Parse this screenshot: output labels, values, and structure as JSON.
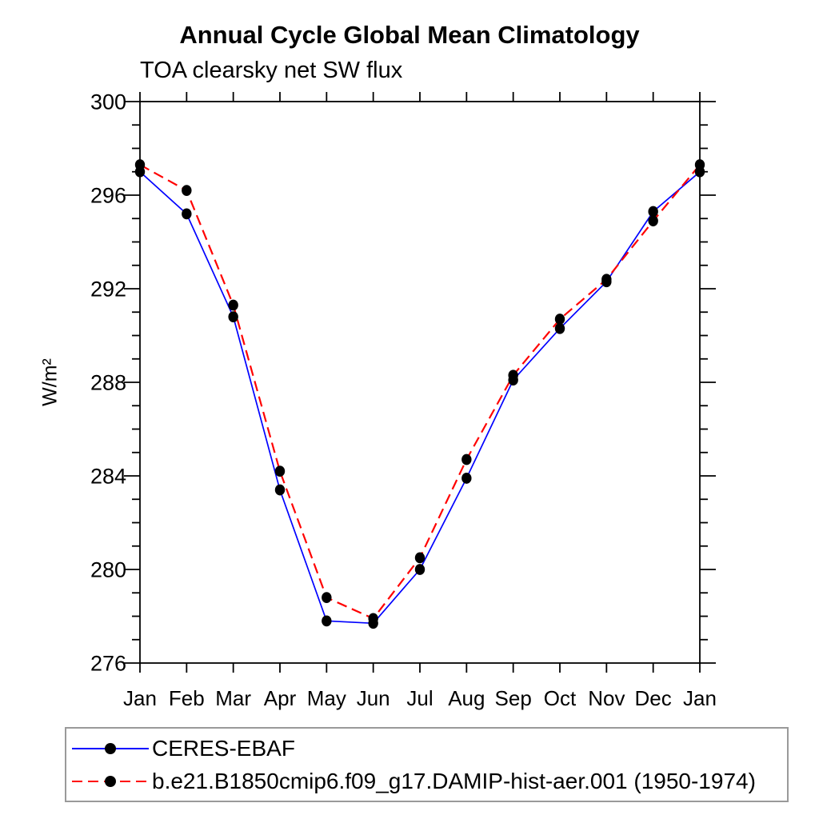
{
  "title": "Annual Cycle Global Mean Climatology",
  "subtitle": "TOA clearsky net SW flux",
  "y_axis_label": "W/m²",
  "chart_data": {
    "type": "line",
    "title": "Annual Cycle Global Mean Climatology",
    "subtitle": "TOA clearsky net SW flux",
    "xlabel": "",
    "ylabel": "W/m²",
    "categories": [
      "Jan",
      "Feb",
      "Mar",
      "Apr",
      "May",
      "Jun",
      "Jul",
      "Aug",
      "Sep",
      "Oct",
      "Nov",
      "Dec",
      "Jan"
    ],
    "series": [
      {
        "name": "CERES-EBAF",
        "color": "#0000ff",
        "line_style": "solid",
        "values": [
          297.0,
          295.2,
          290.8,
          283.4,
          277.8,
          277.7,
          280.0,
          283.9,
          288.1,
          290.3,
          292.3,
          295.3,
          297.0
        ]
      },
      {
        "name": "b.e21.B1850cmip6.f09_g17.DAMIP-hist-aer.001 (1950-1974)",
        "color": "#ff0000",
        "line_style": "dashed",
        "values": [
          297.3,
          296.2,
          291.3,
          284.2,
          278.8,
          277.9,
          280.5,
          284.7,
          288.3,
          290.7,
          292.4,
          294.9,
          297.3
        ]
      }
    ],
    "ylim": [
      276,
      300
    ],
    "y_major_step": 4,
    "y_minor_step": 1,
    "marker": "filled-circle",
    "marker_color": "#000000",
    "grid": "off",
    "legend_position": "bottom-left-box"
  }
}
